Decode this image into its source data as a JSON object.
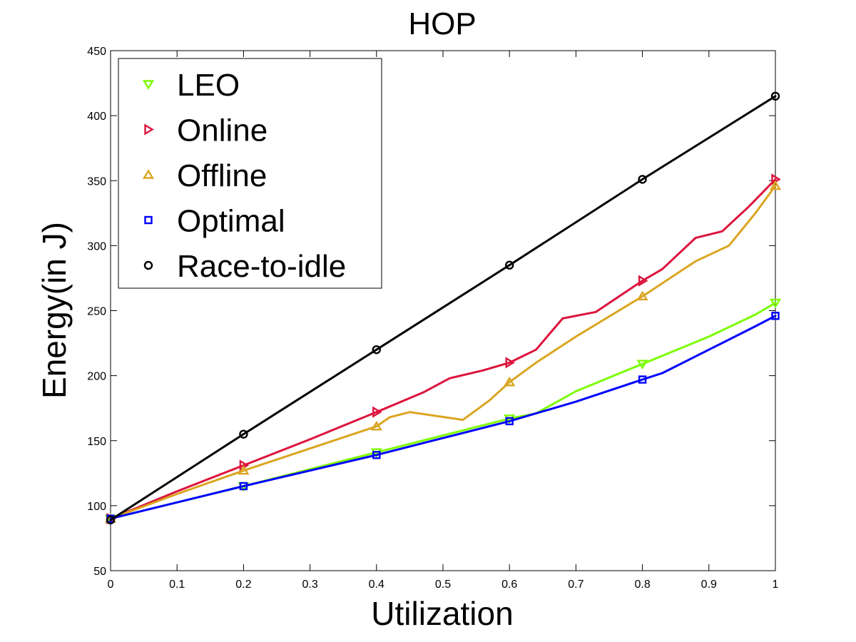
{
  "chart_data": {
    "type": "line",
    "title": "HOP",
    "xlabel": "Utilization",
    "ylabel": "Energy(in J)",
    "xlim": [
      0,
      1
    ],
    "ylim": [
      50,
      450
    ],
    "xticks": [
      0,
      0.1,
      0.2,
      0.3,
      0.4,
      0.5,
      0.6,
      0.7,
      0.8,
      0.9,
      1
    ],
    "xtick_labels": [
      "0",
      "0.1",
      "0.2",
      "0.3",
      "0.4",
      "0.5",
      "0.6",
      "0.7",
      "0.8",
      "0.9",
      "1"
    ],
    "yticks": [
      50,
      100,
      150,
      200,
      250,
      300,
      350,
      400,
      450
    ],
    "ytick_labels": [
      "50",
      "100",
      "150",
      "200",
      "250",
      "300",
      "350",
      "400",
      "450"
    ],
    "grid": false,
    "legend_position": "top-left",
    "series": [
      {
        "name": "LEO",
        "color": "#7cfc00",
        "marker": "triangle-down",
        "marker_x": [
          0,
          0.2,
          0.4,
          0.6,
          0.8,
          1.0
        ],
        "marker_y": [
          90,
          115,
          141,
          167,
          209,
          256
        ],
        "x": [
          0,
          0.2,
          0.4,
          0.5,
          0.6,
          0.64,
          0.7,
          0.8,
          0.9,
          0.97,
          1.0
        ],
        "y": [
          90,
          115,
          141,
          154,
          167,
          171,
          188,
          209,
          230,
          247,
          256
        ]
      },
      {
        "name": "Online",
        "color": "#dc143c",
        "marker": "triangle-right",
        "marker_x": [
          0,
          0.2,
          0.4,
          0.6,
          0.8,
          1.0
        ],
        "marker_y": [
          90,
          131,
          172,
          210,
          273,
          351
        ],
        "x": [
          0,
          0.1,
          0.2,
          0.3,
          0.4,
          0.47,
          0.51,
          0.56,
          0.6,
          0.64,
          0.68,
          0.73,
          0.8,
          0.83,
          0.88,
          0.92,
          0.96,
          1.0
        ],
        "y": [
          90,
          111,
          131,
          151,
          172,
          187,
          198,
          204,
          210,
          220,
          244,
          249,
          273,
          282,
          306,
          311,
          330,
          351
        ]
      },
      {
        "name": "Offline",
        "color": "#daa520",
        "marker": "triangle-up",
        "marker_x": [
          0,
          0.2,
          0.4,
          0.6,
          0.8,
          1.0
        ],
        "marker_y": [
          90,
          127,
          161,
          195,
          261,
          346
        ],
        "x": [
          0,
          0.1,
          0.2,
          0.3,
          0.4,
          0.42,
          0.45,
          0.49,
          0.53,
          0.57,
          0.6,
          0.64,
          0.7,
          0.8,
          0.88,
          0.93,
          0.97,
          1.0
        ],
        "y": [
          90,
          109,
          127,
          144,
          161,
          168,
          172,
          169,
          166,
          181,
          195,
          210,
          230,
          261,
          288,
          300,
          325,
          346
        ]
      },
      {
        "name": "Optimal",
        "color": "#0000ff",
        "marker": "square",
        "marker_x": [
          0,
          0.2,
          0.4,
          0.6,
          0.8,
          1.0
        ],
        "marker_y": [
          90,
          115,
          139,
          165,
          197,
          246
        ],
        "x": [
          0,
          0.2,
          0.4,
          0.5,
          0.6,
          0.7,
          0.8,
          0.83,
          0.9,
          0.97,
          1.0
        ],
        "y": [
          90,
          115,
          139,
          152,
          165,
          180,
          197,
          202,
          220,
          238,
          246
        ]
      },
      {
        "name": "Race-to-idle",
        "color": "#000000",
        "marker": "circle",
        "marker_x": [
          0,
          0.2,
          0.4,
          0.6,
          0.8,
          1.0
        ],
        "marker_y": [
          89,
          155,
          220,
          285,
          351,
          415
        ],
        "x": [
          0,
          0.2,
          0.4,
          0.6,
          0.8,
          1.0
        ],
        "y": [
          89,
          155,
          220,
          285,
          351,
          415
        ]
      }
    ]
  }
}
